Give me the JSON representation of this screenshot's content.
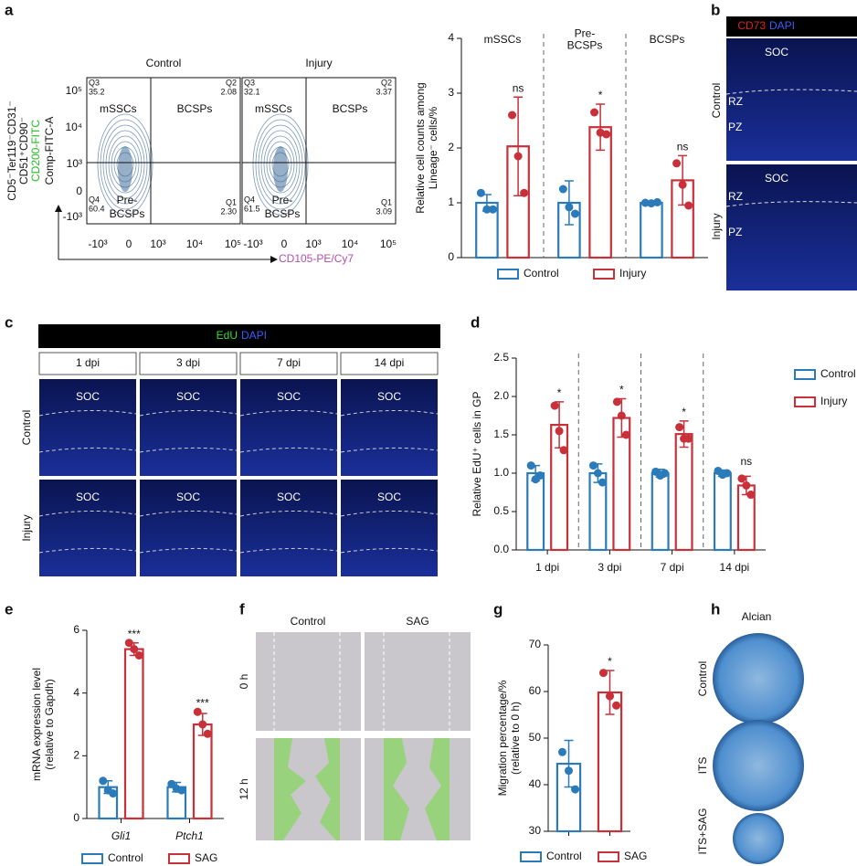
{
  "panel_labels": [
    "a",
    "b",
    "c",
    "d",
    "e",
    "f",
    "g",
    "h"
  ],
  "flow": {
    "ylabel_lines": [
      "CD5⁻Ter119⁻CD31⁻",
      "CD51⁺CD90⁻",
      "CD200-FITC",
      "Comp-FITC-A"
    ],
    "xlabel": "CD105-PE/Cy7",
    "yticks": [
      "10⁵",
      "10⁴",
      "10³",
      "0",
      "-10³"
    ],
    "xticks": [
      "-10³",
      "0",
      "10³",
      "10⁴",
      "10⁵"
    ],
    "plots": [
      {
        "title": "Control",
        "q3": "Q3",
        "q3v": "35.2",
        "q2": "Q2",
        "q2v": "2.08",
        "q4": "Q4",
        "q4v": "60.4",
        "q1": "Q1",
        "q1v": "2.30",
        "tl": "mSSCs",
        "tr": "BCSPs",
        "bl1": "Pre-",
        "bl2": "BCSPs"
      },
      {
        "title": "Injury",
        "q3": "Q3",
        "q3v": "32.1",
        "q2": "Q2",
        "q2v": "3.37",
        "q4": "Q4",
        "q4v": "61.5",
        "q1": "Q1",
        "q1v": "3.09",
        "tl": "mSSCs",
        "tr": "BCSPs",
        "bl1": "Pre-",
        "bl2": "BCSPs"
      }
    ]
  },
  "images": {
    "b": {
      "stain1": "CD73",
      "stain2": "DAPI",
      "soc": "SOC",
      "rz": "RZ",
      "pz": "PZ",
      "rows": [
        "Control",
        "Injury"
      ]
    },
    "c": {
      "stain1": "EdU",
      "stain2": "DAPI",
      "times": [
        "1 dpi",
        "3 dpi",
        "7 dpi",
        "14 dpi"
      ],
      "soc": "SOC",
      "rows": [
        "Control",
        "Injury"
      ]
    },
    "f": {
      "cols": [
        "Control",
        "SAG"
      ],
      "rows": [
        "0 h",
        "12 h"
      ]
    },
    "h": {
      "title": "Alcian",
      "rows": [
        "Control",
        "ITS",
        "ITS+SAG"
      ]
    }
  },
  "chart_data": [
    {
      "type": "bar",
      "ylabel": [
        "Relative cell counts among",
        "Lineage⁻ cells/%"
      ],
      "categories": [
        "mSSCs",
        "Pre-\nBCSPs",
        "BCSPs"
      ],
      "category_position": "top",
      "separators": true,
      "legend": "bottom",
      "ylim": [
        0,
        4
      ],
      "yticks": [
        0,
        1,
        2,
        3,
        4
      ],
      "series": [
        {
          "name": "Control",
          "color": "#2b7bba",
          "values": [
            1.0,
            1.0,
            1.0
          ],
          "errors": [
            0.15,
            0.4,
            0.03
          ],
          "points": [
            [
              1.18,
              0.88,
              0.88
            ],
            [
              1.25,
              0.92,
              0.8
            ],
            [
              1.0,
              0.99,
              1.01
            ]
          ]
        },
        {
          "name": "Injury",
          "color": "#c8303a",
          "values": [
            2.03,
            2.38,
            1.41
          ],
          "errors": [
            0.9,
            0.42,
            0.45
          ],
          "points": [
            [
              2.6,
              1.85,
              1.18
            ],
            [
              2.65,
              2.28,
              2.25
            ],
            [
              1.72,
              1.33,
              0.95
            ]
          ]
        }
      ],
      "annotations": [
        "ns",
        "*",
        "ns"
      ]
    },
    {
      "type": "bar",
      "ylabel": [
        "Relative EdU⁺ cells in GP"
      ],
      "categories": [
        "1 dpi",
        "3 dpi",
        "7 dpi",
        "14 dpi"
      ],
      "category_position": "bottom",
      "separators": true,
      "legend": "right",
      "ylim": [
        0,
        2.5
      ],
      "yticks": [
        {
          "value": 0,
          "label": "0.0"
        },
        {
          "value": 0.5,
          "label": "0.5"
        },
        {
          "value": 1,
          "label": "1.0"
        },
        1.5,
        {
          "value": 2,
          "label": "2.0"
        },
        2.5
      ],
      "series": [
        {
          "name": "Control",
          "color": "#2b7bba",
          "values": [
            1.0,
            1.0,
            1.0,
            1.0
          ],
          "errors": [
            0.1,
            0.12,
            0.05,
            0.04
          ],
          "points": [
            [
              1.1,
              0.92,
              0.97
            ],
            [
              1.1,
              1.0,
              0.88
            ],
            [
              1.02,
              0.97,
              1.0
            ],
            [
              1.03,
              0.98,
              1.0
            ]
          ]
        },
        {
          "name": "Injury",
          "color": "#c8303a",
          "values": [
            1.63,
            1.72,
            1.51,
            0.84
          ],
          "errors": [
            0.3,
            0.25,
            0.17,
            0.12
          ],
          "points": [
            [
              1.88,
              1.55,
              1.3
            ],
            [
              1.93,
              1.75,
              1.5
            ],
            [
              1.6,
              1.45,
              1.45
            ],
            [
              0.93,
              0.84,
              0.72
            ]
          ]
        }
      ],
      "annotations": [
        "*",
        "*",
        "*",
        "ns"
      ]
    },
    {
      "type": "bar",
      "ylabel": [
        "mRNA expression level",
        "(relative to Gapdh)"
      ],
      "categories": [
        "Gli1",
        "Ptch1"
      ],
      "category_position": "bottom",
      "italic_categories": true,
      "legend": "bottom",
      "ylim": [
        0,
        6
      ],
      "yticks": [
        0,
        2,
        4,
        6
      ],
      "series": [
        {
          "name": "Control",
          "color": "#2b7bba",
          "values": [
            1.0,
            1.0
          ],
          "errors": [
            0.2,
            0.15
          ],
          "points": [
            [
              1.2,
              0.9,
              0.8
            ],
            [
              1.1,
              0.95,
              0.9
            ]
          ]
        },
        {
          "name": "SAG",
          "color": "#c8303a",
          "values": [
            5.4,
            3.0
          ],
          "errors": [
            0.2,
            0.35
          ],
          "points": [
            [
              5.6,
              5.4,
              5.2
            ],
            [
              3.4,
              3.0,
              2.7
            ]
          ]
        }
      ],
      "annotations": [
        "***",
        "***"
      ]
    },
    {
      "type": "bar",
      "ylabel": [
        "Migration percentage/%",
        "(relative to 0 h)"
      ],
      "categories": [
        null
      ],
      "legend": "bottom",
      "ylim": [
        30,
        70
      ],
      "yticks": [
        30,
        40,
        50,
        60,
        70
      ],
      "series": [
        {
          "name": "Control",
          "color": "#2b7bba",
          "values": [
            44.5
          ],
          "errors": [
            5
          ],
          "points": [
            [
              47,
              43,
              39
            ]
          ]
        },
        {
          "name": "SAG",
          "color": "#c8303a",
          "values": [
            59.8
          ],
          "errors": [
            4.7
          ],
          "points": [
            [
              64,
              59,
              57
            ]
          ]
        }
      ],
      "annotations": [
        "*"
      ]
    }
  ]
}
